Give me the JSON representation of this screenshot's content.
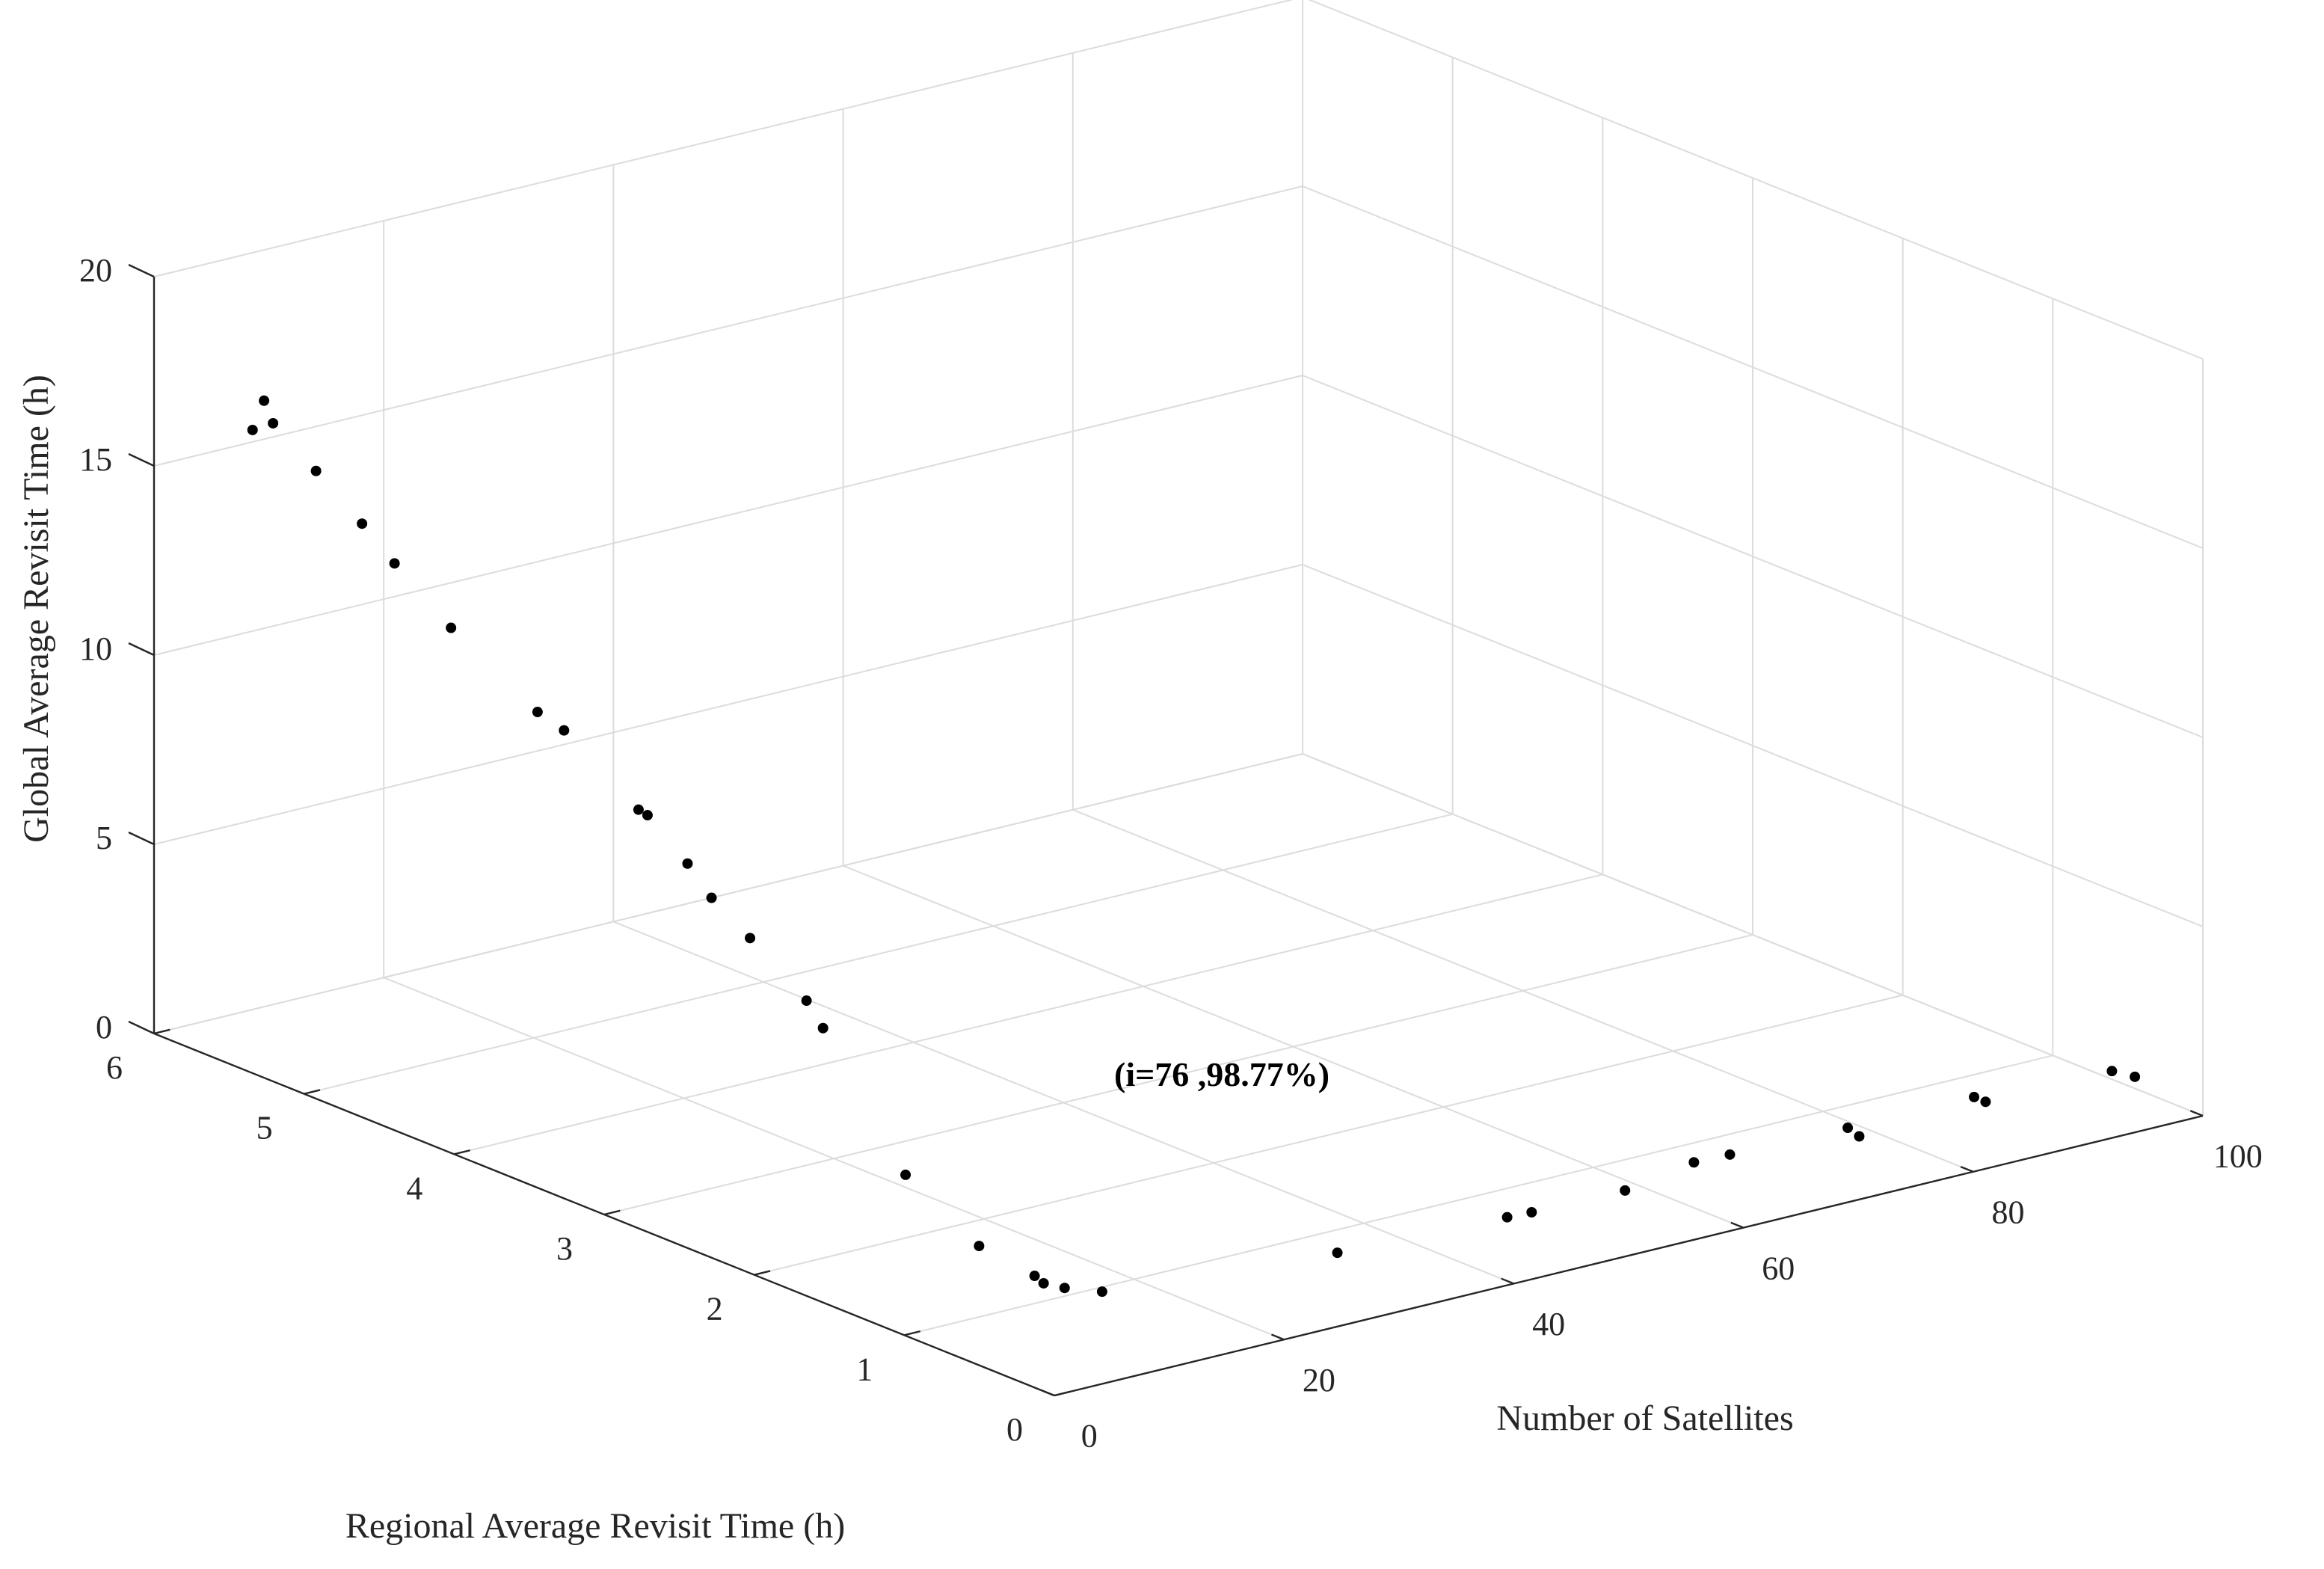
{
  "chart_data": {
    "type": "scatter",
    "subtype": "stem3",
    "title": "",
    "xlabel": "Number of Satellites",
    "ylabel": "Regional Average Revisit Time (h)",
    "zlabel": "Global Average Revisit Time (h)",
    "xlim": [
      0,
      100
    ],
    "ylim": [
      0,
      6
    ],
    "zlim": [
      0,
      20
    ],
    "xticks": [
      0,
      20,
      40,
      60,
      80,
      100
    ],
    "yticks": [
      0,
      1,
      2,
      3,
      4,
      5,
      6
    ],
    "zticks": [
      0,
      5,
      10,
      15,
      20
    ],
    "grid": true,
    "annotation": {
      "text": "(i=76 ,98.77%)",
      "x": 12,
      "y": 1.78,
      "z": 2.47
    },
    "points": [
      {
        "x": 1,
        "y": 5.42,
        "z": 16.8
      },
      {
        "x": 2,
        "y": 5.36,
        "z": 17.0
      },
      {
        "x": 2,
        "y": 5.42,
        "z": 17.5
      },
      {
        "x": 3,
        "y": 5.15,
        "z": 16.0
      },
      {
        "x": 4,
        "y": 4.92,
        "z": 14.9
      },
      {
        "x": 5,
        "y": 4.78,
        "z": 14.0
      },
      {
        "x": 6,
        "y": 4.48,
        "z": 12.7
      },
      {
        "x": 7,
        "y": 3.98,
        "z": 11.2
      },
      {
        "x": 8,
        "y": 3.88,
        "z": 10.8
      },
      {
        "x": 9,
        "y": 3.46,
        "z": 9.3
      },
      {
        "x": 9,
        "y": 3.4,
        "z": 9.25
      },
      {
        "x": 10,
        "y": 3.21,
        "z": 8.2
      },
      {
        "x": 10,
        "y": 3.05,
        "z": 7.55
      },
      {
        "x": 11,
        "y": 2.87,
        "z": 6.7
      },
      {
        "x": 12,
        "y": 2.57,
        "z": 5.45
      },
      {
        "x": 12,
        "y": 2.46,
        "z": 4.9
      },
      {
        "x": 12,
        "y": 1.91,
        "z": 1.9
      },
      {
        "x": 12,
        "y": 1.42,
        "z": 0.8
      },
      {
        "x": 12,
        "y": 1.05,
        "z": 0.6
      },
      {
        "x": 12,
        "y": 0.99,
        "z": 0.5
      },
      {
        "x": 12,
        "y": 0.85,
        "z": 0.6
      },
      {
        "x": 12,
        "y": 0.6,
        "z": 0.9
      },
      {
        "x": 30,
        "y": 0.41,
        "z": 0.9
      },
      {
        "x": 44,
        "y": 0.35,
        "z": 0.9
      },
      {
        "x": 46,
        "y": 0.34,
        "z": 0.9
      },
      {
        "x": 54,
        "y": 0.33,
        "z": 0.9
      },
      {
        "x": 60,
        "y": 0.33,
        "z": 1.2
      },
      {
        "x": 63,
        "y": 0.32,
        "z": 1.2
      },
      {
        "x": 73,
        "y": 0.3,
        "z": 1.2
      },
      {
        "x": 74,
        "y": 0.3,
        "z": 0.9
      },
      {
        "x": 84,
        "y": 0.3,
        "z": 1.2
      },
      {
        "x": 85,
        "y": 0.3,
        "z": 1.0
      },
      {
        "x": 96,
        "y": 0.3,
        "z": 1.0
      },
      {
        "x": 98,
        "y": 0.3,
        "z": 0.7
      }
    ]
  }
}
